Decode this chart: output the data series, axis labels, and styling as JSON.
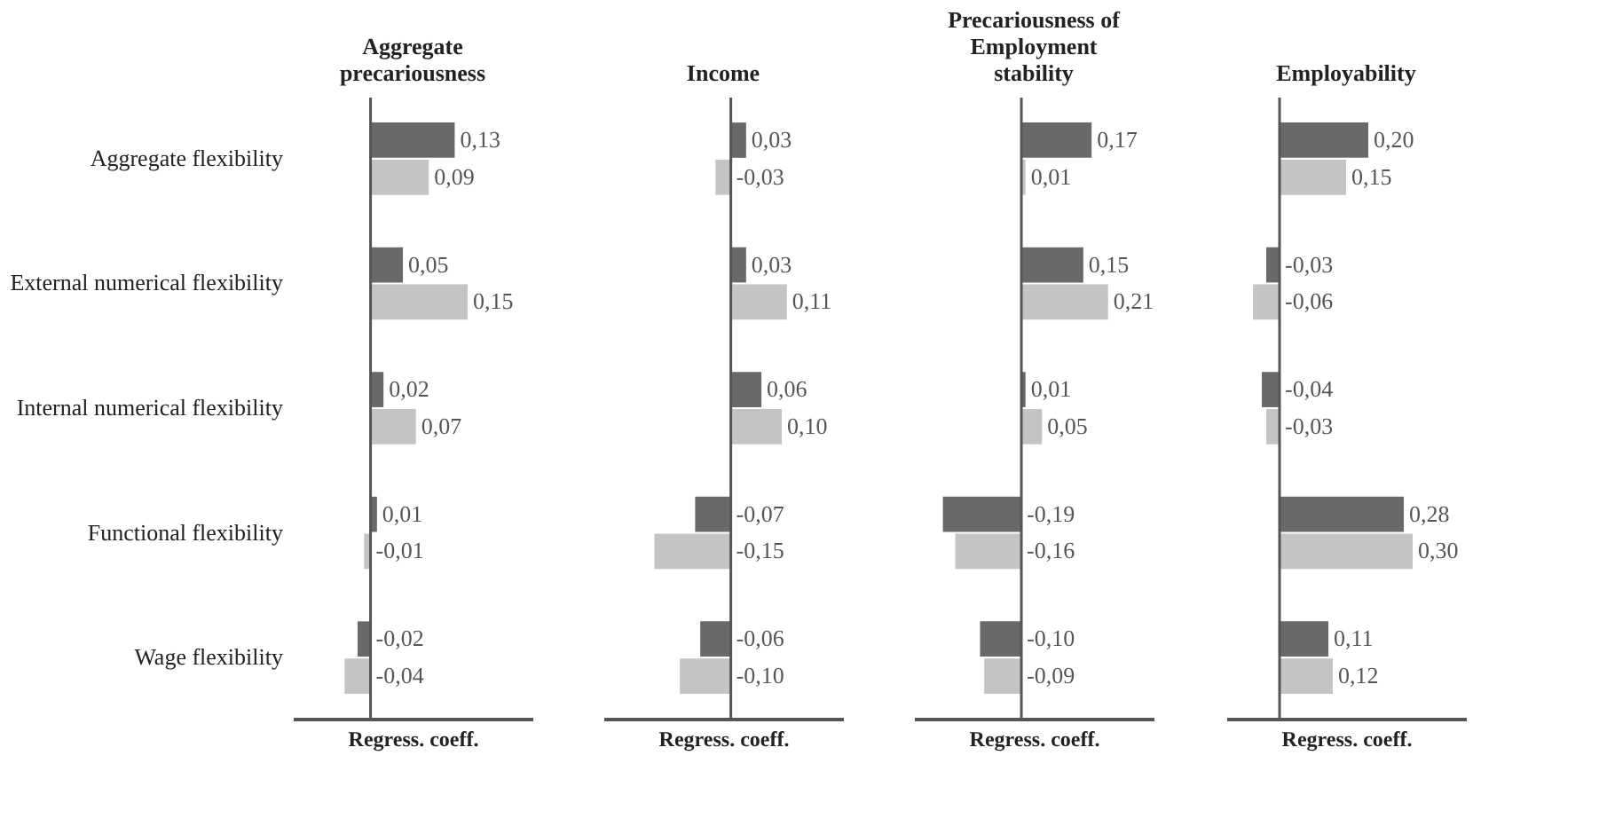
{
  "chart_data": [
    {
      "type": "bar",
      "orientation": "horizontal",
      "title": "Aggregate precariousness",
      "xlabel": "Regress. coeff.",
      "tick_labels": "y",
      "xlim": [
        -0.12,
        0.25
      ],
      "categories": [
        "Aggregate flexibility",
        "External numerical flexibility",
        "Internal numerical flexibility",
        "Functional flexibility",
        "Wage flexibility"
      ],
      "series": [
        {
          "color": "#696969",
          "values": [
            0.13,
            0.05,
            0.02,
            0.01,
            -0.02
          ],
          "value_labels": [
            "0,13",
            "0,05",
            "0,02",
            "0,01",
            "-0,02"
          ]
        },
        {
          "color": "#c4c4c4",
          "values": [
            0.09,
            0.15,
            0.07,
            -0.01,
            -0.04
          ],
          "value_labels": [
            "0,09",
            "0,15",
            "0,07",
            "-0,01",
            "-0,04"
          ]
        }
      ]
    },
    {
      "type": "bar",
      "orientation": "horizontal",
      "title": "Income",
      "xlabel": "Regress. coeff.",
      "tick_labels": false,
      "xlim": [
        -0.25,
        0.22
      ],
      "categories": [
        null,
        null,
        null,
        null,
        null
      ],
      "series": [
        {
          "color": "#696969",
          "values": [
            0.03,
            0.03,
            0.06,
            -0.07,
            -0.06
          ],
          "value_labels": [
            "0,03",
            "0,03",
            "0,06",
            "-0,07",
            "-0,06"
          ]
        },
        {
          "color": "#c4c4c4",
          "values": [
            -0.03,
            0.11,
            0.1,
            -0.15,
            -0.1
          ],
          "value_labels": [
            "-0,03",
            "0,11",
            "0,10",
            "-0,15",
            "-0,10"
          ]
        }
      ]
    },
    {
      "type": "bar",
      "orientation": "horizontal",
      "title": "Precariousness of Employment stability",
      "xlabel": "Regress. coeff.",
      "tick_labels": false,
      "xlim": [
        -0.26,
        0.32
      ],
      "categories": [
        null,
        null,
        null,
        null,
        null
      ],
      "series": [
        {
          "color": "#696969",
          "values": [
            0.17,
            0.15,
            0.01,
            -0.19,
            -0.1
          ],
          "value_labels": [
            "0,17",
            "0,15",
            "0,01",
            "-0,19",
            "-0,10"
          ]
        },
        {
          "color": "#c4c4c4",
          "values": [
            0.01,
            0.21,
            0.05,
            -0.16,
            -0.09
          ],
          "value_labels": [
            "0,01",
            "0,21",
            "0,05",
            "-0,16",
            "-0,09"
          ]
        }
      ]
    },
    {
      "type": "bar",
      "orientation": "horizontal",
      "title": "Employability",
      "xlabel": "Regress. coeff.",
      "tick_labels": false,
      "xlim": [
        -0.12,
        0.42
      ],
      "categories": [
        null,
        null,
        null,
        null,
        null
      ],
      "series": [
        {
          "color": "#696969",
          "values": [
            0.2,
            -0.03,
            -0.04,
            0.28,
            0.11
          ],
          "value_labels": [
            "0,20",
            "-0,03",
            "-0,04",
            "0,28",
            "0,11"
          ]
        },
        {
          "color": "#c4c4c4",
          "values": [
            0.15,
            -0.06,
            -0.03,
            0.3,
            0.12
          ],
          "value_labels": [
            "0,15",
            "-0,06",
            "-0,03",
            "0,30",
            "0,12"
          ]
        }
      ]
    }
  ]
}
